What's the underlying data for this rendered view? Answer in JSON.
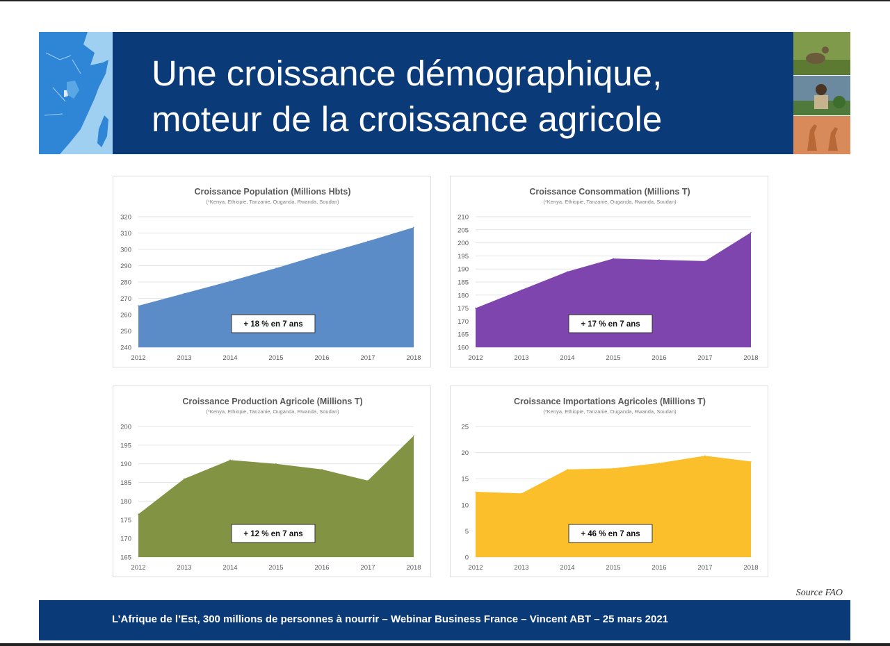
{
  "slide": {
    "title_line1": "Une croissance démographique,",
    "title_line2": "moteur de la croissance agricole",
    "source": "Source FAO",
    "footer": "L’Afrique de l’Est, 300 millions de personnes à nourrir – Webinar Business France – Vincent ABT – 25 mars 2021",
    "colors": {
      "header_blue": "#0b3a78",
      "map_blue": "#2f86d6"
    },
    "header_images": [
      "east-africa-map",
      "photo-wildlife",
      "photo-farmer",
      "photo-giraffes"
    ]
  },
  "chart_data": [
    {
      "type": "area",
      "title": "Croissance Population (Millions Hbts)",
      "subtitle": "(*Kenya, Ethiopie, Tanzanie, Ouganda, Rwanda, Soudan)",
      "x": [
        "2012",
        "2013",
        "2014",
        "2015",
        "2016",
        "2017",
        "2018"
      ],
      "series": [
        {
          "values": [
            265.5,
            273,
            280.5,
            288.5,
            297,
            305,
            313.5
          ]
        }
      ],
      "ylim": [
        240,
        320
      ],
      "yticks": [
        240,
        250,
        260,
        270,
        280,
        290,
        300,
        310,
        320
      ],
      "annotation": "+ 18 % en 7 ans",
      "color": "#5b8cc8",
      "grid": true
    },
    {
      "type": "area",
      "title": "Croissance Consommation (Millions T)",
      "subtitle": "(*Kenya, Ethiopie, Tanzanie, Ouganda, Rwanda, Soudan)",
      "x": [
        "2012",
        "2013",
        "2014",
        "2015",
        "2016",
        "2017",
        "2018"
      ],
      "series": [
        {
          "values": [
            175,
            182,
            189,
            194,
            193.5,
            193,
            204
          ]
        }
      ],
      "ylim": [
        160,
        210
      ],
      "yticks": [
        160,
        165,
        170,
        175,
        180,
        185,
        190,
        195,
        200,
        205,
        210
      ],
      "annotation": "+ 17 % en 7 ans",
      "color": "#7e45ae",
      "grid": true
    },
    {
      "type": "area",
      "title": "Croissance Production Agricole (Millions T)",
      "subtitle": "(*Kenya, Ethiopie, Tanzanie, Ouganda, Rwanda, Soudan)",
      "x": [
        "2012",
        "2013",
        "2014",
        "2015",
        "2016",
        "2017",
        "2018"
      ],
      "series": [
        {
          "values": [
            176.5,
            186,
            191,
            190,
            188.5,
            185.5,
            197.5
          ]
        }
      ],
      "ylim": [
        165,
        200
      ],
      "yticks": [
        165,
        170,
        175,
        180,
        185,
        190,
        195,
        200
      ],
      "annotation": "+ 12 % en 7 ans",
      "color": "#829343",
      "grid": true
    },
    {
      "type": "area",
      "title": "Croissance Importations Agricoles (Millions T)",
      "subtitle": "(*Kenya, Ethiopie, Tanzanie, Ouganda, Rwanda, Soudan)",
      "x": [
        "2012",
        "2013",
        "2014",
        "2015",
        "2016",
        "2017",
        "2018"
      ],
      "series": [
        {
          "values": [
            12.5,
            12.2,
            16.8,
            17,
            18,
            19.4,
            18.3
          ]
        }
      ],
      "ylim": [
        0,
        25
      ],
      "yticks": [
        0,
        5,
        10,
        15,
        20,
        25
      ],
      "annotation": "+ 46 % en 7 ans",
      "color": "#fbbf2b",
      "grid": true
    }
  ]
}
